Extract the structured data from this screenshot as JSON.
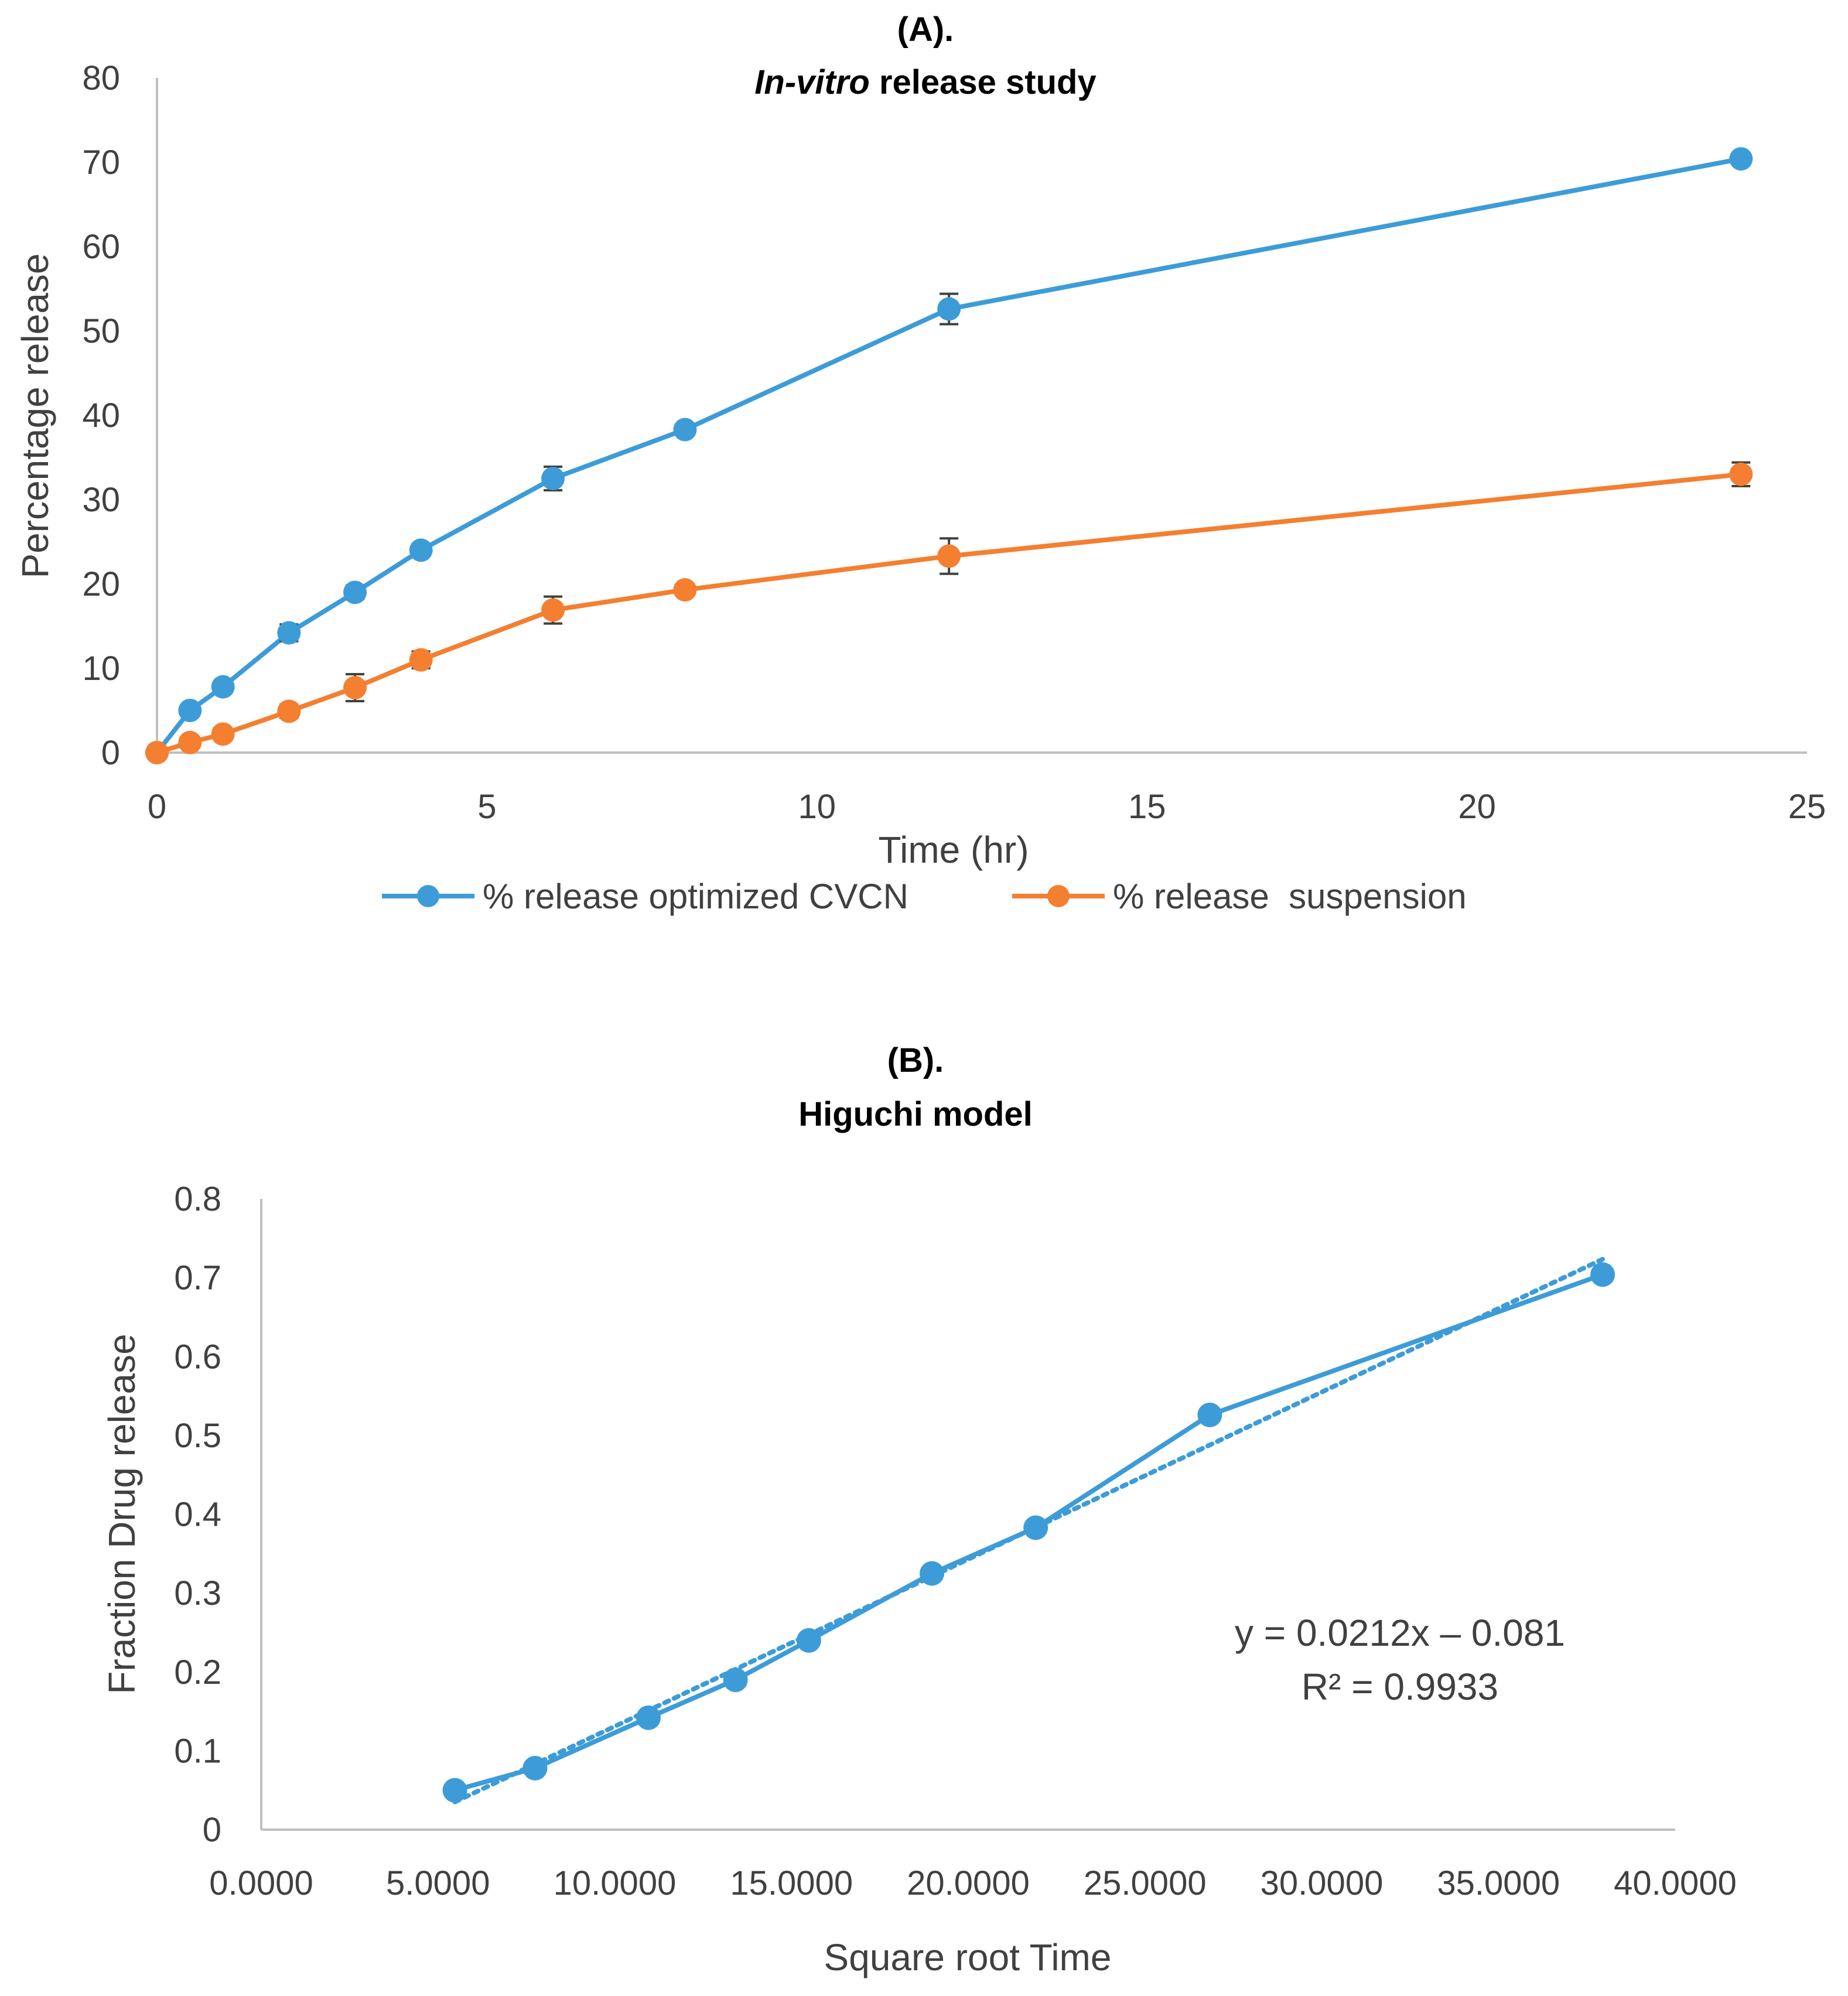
{
  "colors": {
    "blue": "#3D9CD8",
    "orange": "#F47F30",
    "axis": "#BFBFBF",
    "text": "#404040",
    "errbar": "#404040"
  },
  "chart_data": [
    {
      "type": "line",
      "panel_label": "(A).",
      "title_italic": "In-vitro",
      "title_rest": " release study",
      "xlabel": "Time (hr)",
      "ylabel": "Percentage release",
      "xlim": [
        0,
        25
      ],
      "ylim": [
        0,
        80
      ],
      "xticks": [
        0,
        5,
        10,
        15,
        20,
        25
      ],
      "yticks": [
        0,
        10,
        20,
        30,
        40,
        50,
        60,
        70,
        80
      ],
      "x": [
        0,
        0.5,
        1,
        2,
        3,
        4,
        6,
        8,
        12,
        24
      ],
      "series": [
        {
          "name": "% release optimized CVCN",
          "color": "#3D9CD8",
          "values": [
            0,
            5,
            7.8,
            14.2,
            19,
            24,
            32.5,
            38.3,
            52.6,
            70.4
          ],
          "errors": [
            0,
            0.6,
            0.6,
            1,
            0.8,
            0.6,
            1.4,
            0.6,
            1.8,
            0.7
          ]
        },
        {
          "name": "% release  suspension",
          "color": "#F47F30",
          "values": [
            0,
            1.2,
            2.2,
            4.9,
            7.7,
            11,
            16.9,
            19.3,
            23.3,
            33
          ],
          "errors": [
            0,
            0.5,
            0.5,
            0.8,
            1.6,
            1,
            1.6,
            0.6,
            2.1,
            1.4
          ]
        }
      ],
      "legend_position": "bottom"
    },
    {
      "type": "scatter",
      "panel_label": "(B).",
      "title": "Higuchi model",
      "xlabel": "Square root Time",
      "ylabel": "Fraction Drug release",
      "xlim": [
        0,
        40
      ],
      "ylim": [
        0,
        0.8
      ],
      "xticks": [
        "0.0000",
        "5.0000",
        "10.0000",
        "15.0000",
        "20.0000",
        "25.0000",
        "30.0000",
        "35.0000",
        "40.0000"
      ],
      "yticks": [
        "0",
        "0.1",
        "0.2",
        "0.3",
        "0.4",
        "0.5",
        "0.6",
        "0.7",
        "0.8"
      ],
      "x": [
        5.477,
        7.746,
        10.954,
        13.416,
        15.492,
        18.974,
        21.909,
        26.833,
        37.947
      ],
      "y": [
        0.05,
        0.078,
        0.142,
        0.19,
        0.24,
        0.325,
        0.383,
        0.526,
        0.704
      ],
      "trendline": {
        "style": "dotted linear",
        "slope": 0.0212,
        "intercept": -0.081
      },
      "equation": "y = 0.0212x – 0.081",
      "r_squared": "R² = 0.9933",
      "color": "#3D9CD8"
    }
  ]
}
